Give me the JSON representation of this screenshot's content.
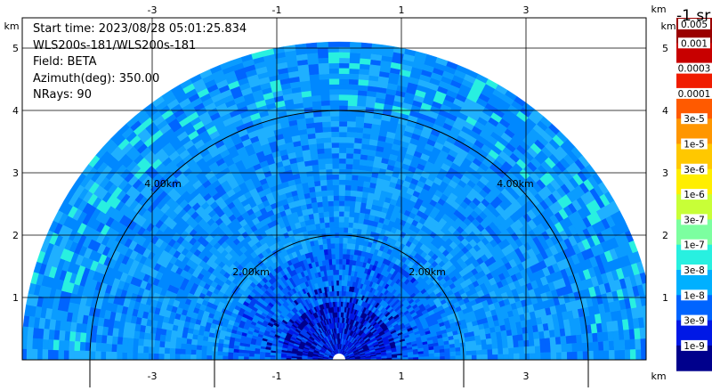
{
  "info": {
    "start_time": "Start time: 2023/08/28 05:01:25.834",
    "instrument": "WLS200s-181/WLS200s-181",
    "field": "Field: BETA",
    "azimuth": "Azimuth(deg): 350.00",
    "nrays": "NRays: 90"
  },
  "colorbar": {
    "title": "-1 sr",
    "labels": [
      "0.005",
      "0.001",
      "0.0003",
      "0.0001",
      "3e-5",
      "1e-5",
      "3e-6",
      "1e-6",
      "3e-7",
      "1e-7",
      "3e-8",
      "1e-8",
      "3e-9",
      "1e-9"
    ],
    "colors": [
      "#9a0000",
      "#c80000",
      "#f01c00",
      "#ff5a00",
      "#ff9600",
      "#ffc800",
      "#ffee00",
      "#c8ff37",
      "#7cffa0",
      "#28f0e0",
      "#00b0ff",
      "#0064ff",
      "#0018e6",
      "#00008c"
    ]
  },
  "chart_data": {
    "type": "heatmap",
    "title": "",
    "xlabel": "km",
    "ylabel": "km",
    "xlim": [
      -5.5,
      5.5
    ],
    "ylim": [
      0,
      5.9
    ],
    "x_ticks": [
      "-3",
      "-1",
      "1",
      "3"
    ],
    "y_ticks": [
      "1",
      "2",
      "3",
      "4",
      "5"
    ],
    "grid": true,
    "range_rings_km": [
      "2.00km",
      "4.00km"
    ],
    "max_range_km": 5.1,
    "field": "BETA",
    "azimuth_deg": 350.0,
    "n_rays": 90,
    "color_scale": "log",
    "value_range": [
      1e-09,
      0.005
    ],
    "typical_values": [
      {
        "region": "near range",
        "value": 3e-08
      },
      {
        "region": "mid range",
        "value": 1e-07
      },
      {
        "region": "far range",
        "value": 1e-07
      }
    ]
  }
}
